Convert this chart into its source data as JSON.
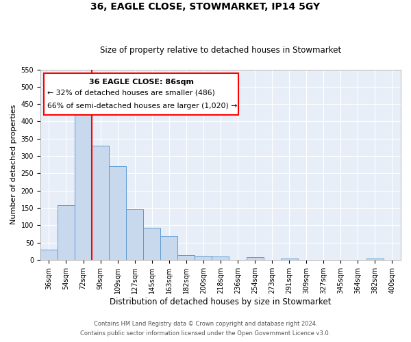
{
  "title": "36, EAGLE CLOSE, STOWMARKET, IP14 5GY",
  "subtitle": "Size of property relative to detached houses in Stowmarket",
  "xlabel": "Distribution of detached houses by size in Stowmarket",
  "ylabel": "Number of detached properties",
  "bar_color": "#c9d9ed",
  "bar_edge_color": "#5b9bd5",
  "background_color": "#e8eef7",
  "grid_color": "#ffffff",
  "fig_background": "#ffffff",
  "categories": [
    "36sqm",
    "54sqm",
    "72sqm",
    "90sqm",
    "109sqm",
    "127sqm",
    "145sqm",
    "163sqm",
    "182sqm",
    "200sqm",
    "218sqm",
    "236sqm",
    "254sqm",
    "273sqm",
    "291sqm",
    "309sqm",
    "327sqm",
    "345sqm",
    "364sqm",
    "382sqm",
    "400sqm"
  ],
  "bar_heights": [
    30,
    157,
    425,
    330,
    270,
    145,
    92,
    68,
    14,
    12,
    10,
    0,
    8,
    0,
    3,
    0,
    0,
    0,
    0,
    3,
    0
  ],
  "ylim": [
    0,
    550
  ],
  "yticks": [
    0,
    50,
    100,
    150,
    200,
    250,
    300,
    350,
    400,
    450,
    500,
    550
  ],
  "red_line_x": 2.5,
  "annotation_title": "36 EAGLE CLOSE: 86sqm",
  "annotation_line1": "← 32% of detached houses are smaller (486)",
  "annotation_line2": "66% of semi-detached houses are larger (1,020) →",
  "footnote1": "Contains HM Land Registry data © Crown copyright and database right 2024.",
  "footnote2": "Contains public sector information licensed under the Open Government Licence v3.0."
}
